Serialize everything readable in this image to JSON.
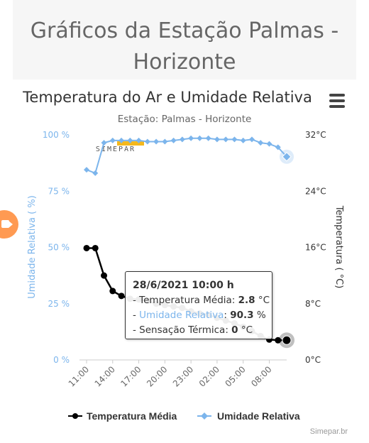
{
  "page": {
    "title": "Gráficos da Estação Palmas - Horizonte"
  },
  "chart_data": {
    "type": "line",
    "title": "Temperatura do Ar e Umidade Relativa",
    "subtitle": "Estação: Palmas - Horizonte",
    "x": [
      "11:00",
      "12:00",
      "13:00",
      "14:00",
      "15:00",
      "16:00",
      "17:00",
      "18:00",
      "19:00",
      "20:00",
      "21:00",
      "22:00",
      "23:00",
      "00:00",
      "01:00",
      "02:00",
      "03:00",
      "04:00",
      "05:00",
      "06:00",
      "07:00",
      "08:00",
      "09:00",
      "10:00"
    ],
    "x_tick_labels": [
      "11:00",
      "14:00",
      "17:00",
      "20:00",
      "23:00",
      "02:00",
      "05:00",
      "08:00"
    ],
    "y_left": {
      "label": "Umidade Relativa ( %)",
      "min": 0,
      "max": 100,
      "ticks": [
        "0 %",
        "25 %",
        "50 %",
        "75 %",
        "100 %"
      ],
      "color": "#7cb5ec"
    },
    "y_right": {
      "label": "Temperatura ( °C)",
      "min": 0,
      "max": 32,
      "ticks": [
        "0°C",
        "8°C",
        "16°C",
        "24°C",
        "32°C"
      ]
    },
    "grid": false,
    "legend_position": "bottom",
    "series": [
      {
        "name": "Temperatura Média",
        "axis": "right",
        "color": "#000000",
        "marker": "circle",
        "values": [
          15.9,
          15.9,
          12.0,
          9.8,
          9.1,
          8.7,
          8.6,
          8.4,
          8.0,
          7.8,
          7.6,
          7.4,
          6.9,
          6.6,
          6.4,
          6.0,
          5.6,
          5.2,
          4.7,
          4.1,
          3.4,
          2.9,
          2.8,
          2.8
        ]
      },
      {
        "name": "Umidade Relativa",
        "axis": "left",
        "color": "#7cb5ec",
        "marker": "diamond",
        "values": [
          84.5,
          83.0,
          96.5,
          97.5,
          97.5,
          97.5,
          97.5,
          97.0,
          97.0,
          97.0,
          97.5,
          98.0,
          98.5,
          98.5,
          98.5,
          98.0,
          98.0,
          98.0,
          97.5,
          98.0,
          96.5,
          96.0,
          94.5,
          90.3
        ]
      }
    ],
    "highlighted_index": 23,
    "watermark": "SIMEPAR",
    "credits": "Simepar.br"
  },
  "tooltip": {
    "title": "28/6/2021 10:00 h",
    "temp_label": "Temperatura Média:",
    "temp_value": "2.8",
    "temp_unit": "°C",
    "hum_label": "Umidade Relativa",
    "hum_value": "90.3",
    "hum_unit": "%",
    "feel_label": "Sensação Térmica:",
    "feel_value": "0",
    "feel_unit": "°C"
  },
  "icons": {
    "menu": "hamburger-menu-icon",
    "camera": "video-camera-icon"
  },
  "colors": {
    "humidity": "#7cb5ec",
    "temperature": "#000000",
    "watermark_bar": "#f5b81c"
  }
}
